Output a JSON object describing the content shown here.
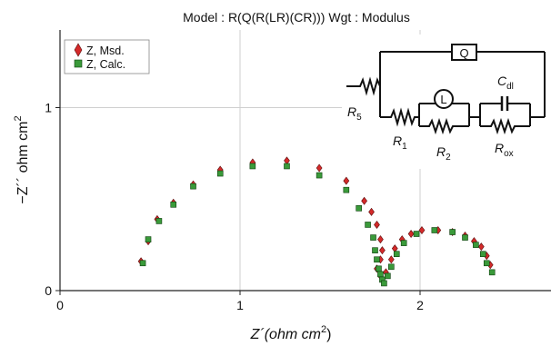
{
  "chart_data": {
    "type": "scatter",
    "title": "Model : R(Q(R(LR)(CR))) Wgt : Modulus",
    "xlabel": {
      "main": "Z´(ohm cm",
      "sup": "2",
      "end": ")"
    },
    "ylabel": {
      "main": "−Z´´ ohm cm",
      "sup": "2"
    },
    "xlim": [
      0,
      2.75
    ],
    "ylim": [
      0,
      1.38
    ],
    "xticks": [
      {
        "value": 0,
        "label": "0"
      },
      {
        "value": 1,
        "label": "1"
      },
      {
        "value": 2,
        "label": "2"
      }
    ],
    "yticks": [
      {
        "value": 0,
        "label": "0"
      },
      {
        "value": 1,
        "label": "1"
      }
    ],
    "grid": true,
    "legend_position": "top-left",
    "series": [
      {
        "name": "Z, Msd.",
        "marker": "diamond",
        "color": "#d42a2a",
        "points": [
          [
            0.45,
            0.16
          ],
          [
            0.49,
            0.27
          ],
          [
            0.54,
            0.39
          ],
          [
            0.63,
            0.48
          ],
          [
            0.74,
            0.58
          ],
          [
            0.89,
            0.66
          ],
          [
            1.07,
            0.7
          ],
          [
            1.26,
            0.71
          ],
          [
            1.44,
            0.67
          ],
          [
            1.59,
            0.6
          ],
          [
            1.69,
            0.49
          ],
          [
            1.73,
            0.43
          ],
          [
            1.76,
            0.36
          ],
          [
            1.78,
            0.28
          ],
          [
            1.79,
            0.22
          ],
          [
            1.78,
            0.17
          ],
          [
            1.76,
            0.12
          ],
          [
            1.78,
            0.08
          ],
          [
            1.81,
            0.1
          ],
          [
            1.84,
            0.17
          ],
          [
            1.86,
            0.23
          ],
          [
            1.9,
            0.28
          ],
          [
            1.95,
            0.31
          ],
          [
            2.01,
            0.33
          ],
          [
            2.1,
            0.33
          ],
          [
            2.18,
            0.32
          ],
          [
            2.25,
            0.3
          ],
          [
            2.3,
            0.27
          ],
          [
            2.34,
            0.24
          ],
          [
            2.37,
            0.19
          ],
          [
            2.39,
            0.14
          ]
        ]
      },
      {
        "name": "Z, Calc.",
        "marker": "square",
        "color": "#3a9a3a",
        "points": [
          [
            0.46,
            0.15
          ],
          [
            0.49,
            0.28
          ],
          [
            0.55,
            0.38
          ],
          [
            0.63,
            0.47
          ],
          [
            0.74,
            0.57
          ],
          [
            0.89,
            0.64
          ],
          [
            1.07,
            0.68
          ],
          [
            1.26,
            0.68
          ],
          [
            1.44,
            0.63
          ],
          [
            1.59,
            0.55
          ],
          [
            1.66,
            0.45
          ],
          [
            1.71,
            0.36
          ],
          [
            1.74,
            0.29
          ],
          [
            1.75,
            0.22
          ],
          [
            1.76,
            0.17
          ],
          [
            1.77,
            0.12
          ],
          [
            1.78,
            0.09
          ],
          [
            1.79,
            0.06
          ],
          [
            1.8,
            0.04
          ],
          [
            1.82,
            0.08
          ],
          [
            1.84,
            0.13
          ],
          [
            1.87,
            0.2
          ],
          [
            1.91,
            0.26
          ],
          [
            1.98,
            0.31
          ],
          [
            2.08,
            0.33
          ],
          [
            2.18,
            0.32
          ],
          [
            2.25,
            0.29
          ],
          [
            2.31,
            0.25
          ],
          [
            2.35,
            0.2
          ],
          [
            2.37,
            0.15
          ],
          [
            2.4,
            0.1
          ]
        ]
      }
    ]
  },
  "circuit": {
    "element_Q": "Q",
    "element_L": "L",
    "labels": {
      "cdl": {
        "main": "C",
        "sub": "dl"
      },
      "r5": {
        "main": "R",
        "sub": "5"
      },
      "r1": {
        "main": "R",
        "sub": "1"
      },
      "r2": {
        "main": "R",
        "sub": "2"
      },
      "rox": {
        "main": "R",
        "sub": "ox"
      }
    }
  }
}
